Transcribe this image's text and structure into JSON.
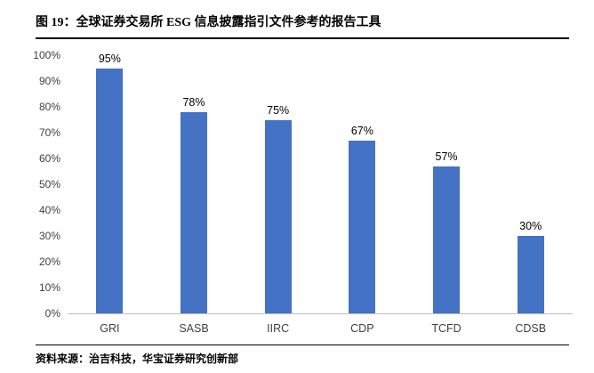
{
  "header": {
    "figure_label": "图 19：",
    "title": "全球证券交易所 ESG 信息披露指引文件参考的报告工具"
  },
  "footer": {
    "source": "资料来源：治吉科技，华宝证券研究创新部"
  },
  "chart_data": {
    "type": "bar",
    "title": "全球证券交易所 ESG 信息披露指引文件参考的报告工具",
    "categories": [
      "GRI",
      "SASB",
      "IIRC",
      "CDP",
      "TCFD",
      "CDSB"
    ],
    "values": [
      95,
      78,
      75,
      67,
      57,
      30
    ],
    "value_labels": [
      "95%",
      "78%",
      "75%",
      "67%",
      "57%",
      "30%"
    ],
    "xlabel": "",
    "ylabel": "",
    "ylim": [
      0,
      100
    ],
    "ytick_step": 10,
    "ytick_labels": [
      "0%",
      "10%",
      "20%",
      "30%",
      "40%",
      "50%",
      "60%",
      "70%",
      "80%",
      "90%",
      "100%"
    ],
    "bar_color": "#4472C4",
    "grid": false,
    "legend": null
  }
}
